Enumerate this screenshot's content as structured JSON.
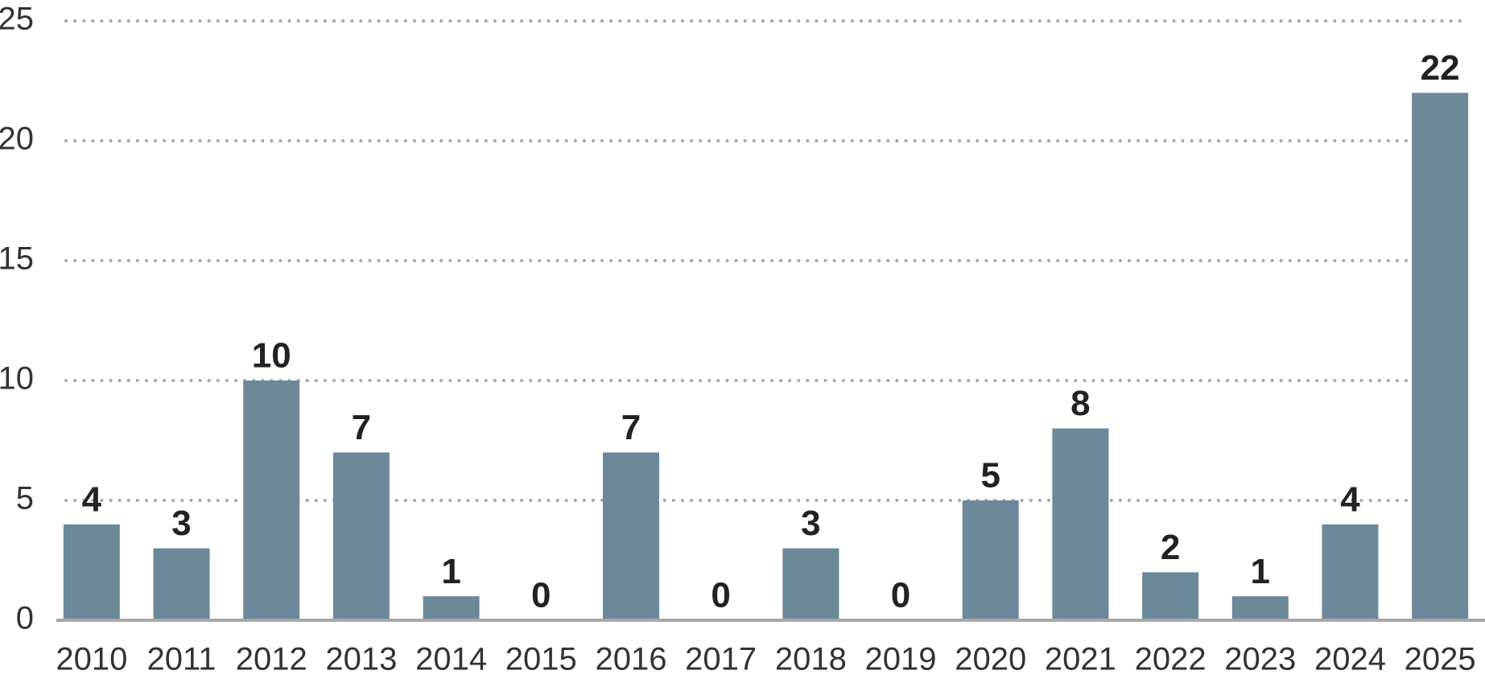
{
  "chart_data": {
    "type": "bar",
    "categories": [
      "2010",
      "2011",
      "2012",
      "2013",
      "2014",
      "2015",
      "2016",
      "2017",
      "2018",
      "2019",
      "2020",
      "2021",
      "2022",
      "2023",
      "2024",
      "2025"
    ],
    "values": [
      4,
      3,
      10,
      7,
      1,
      0,
      7,
      0,
      3,
      0,
      5,
      8,
      2,
      1,
      4,
      22
    ],
    "color": "#6b8999",
    "ylim": [
      0,
      25
    ],
    "yticks": [
      0,
      5,
      10,
      15,
      20,
      25
    ],
    "grid": true
  }
}
